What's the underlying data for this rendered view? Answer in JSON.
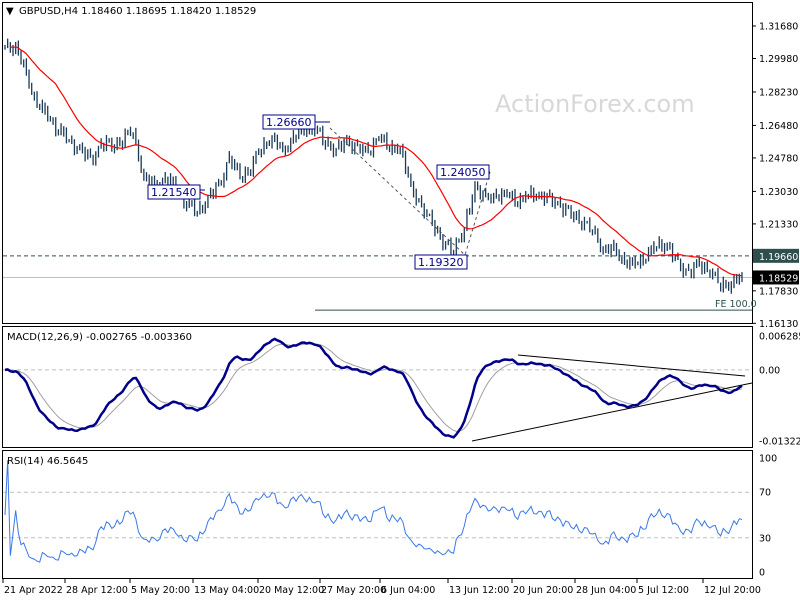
{
  "chart_data": {
    "type": "ohlc",
    "symbol_header": "GBPUSD,H4  1.18460 1.18695 1.18420 1.18529",
    "watermark": "ActionForex.com",
    "price_axis": {
      "ticks": [
        "1.31680",
        "1.29980",
        "1.28230",
        "1.26480",
        "1.24780",
        "1.23030",
        "1.21330",
        "1.17830",
        "1.16130"
      ],
      "range": [
        1.1613,
        1.3168
      ],
      "current_price": "1.18529",
      "level_label": "1.19660"
    },
    "close_path": [
      1.3069,
      1.3053,
      1.2912,
      1.2755,
      1.2703,
      1.2624,
      1.2572,
      1.2519,
      1.2467,
      1.2546,
      1.2546,
      1.2572,
      1.2624,
      1.2363,
      1.2336,
      1.2363,
      1.2336,
      1.2232,
      1.2206,
      1.2258,
      1.2336,
      1.2467,
      1.2389,
      1.2415,
      1.2546,
      1.2572,
      1.2519,
      1.2572,
      1.2635,
      1.2624,
      1.2572,
      1.2509,
      1.2572,
      1.2519,
      1.2519,
      1.2582,
      1.2546,
      1.2519,
      1.2336,
      1.2206,
      1.2153,
      1.2023,
      1.2007,
      1.2101,
      1.2336,
      1.2258,
      1.2284,
      1.2284,
      1.2258,
      1.2284,
      1.2284,
      1.2258,
      1.2232,
      1.218,
      1.2153,
      1.2101,
      1.1997,
      1.1997,
      1.1934,
      1.1918,
      1.197,
      1.2023,
      1.2023,
      1.1918,
      1.1881,
      1.1918,
      1.1892,
      1.1813,
      1.1823,
      1.1853
    ],
    "moving_average_color": "#ff0000",
    "bar_color": "#1b3a57",
    "annotations": {
      "swing_labels": [
        "1.26660",
        "1.21540",
        "1.24050",
        "1.19320"
      ],
      "horizontal_level": 1.1966,
      "fe_label": "FE 100.0",
      "fe_level": 1.1682
    },
    "macd": {
      "title": "MACD(12,26,9) -0.002765 -0.003360",
      "ticks": [
        "0.006285",
        "0.00",
        "-0.013223"
      ],
      "range": [
        -0.013223,
        0.006285
      ],
      "main_color": "#00008b",
      "signal_color": "#a0a0a0"
    },
    "rsi": {
      "title": "RSI(14) 46.5645",
      "ticks": [
        "100",
        "70",
        "30",
        "0"
      ],
      "range": [
        0,
        100
      ],
      "levels": [
        70,
        30
      ],
      "color": "#3b78e7"
    },
    "x_ticks": [
      "21 Apr 2022",
      "28 Apr 12:00",
      "5 May 20:00",
      "13 May 04:00",
      "20 May 12:00",
      "27 May 20:00",
      "6 Jun 04:00",
      "13 Jun 12:00",
      "20 Jun 20:00",
      "28 Jun 04:00",
      "5 Jul 12:00",
      "12 Jul 20:00"
    ]
  }
}
